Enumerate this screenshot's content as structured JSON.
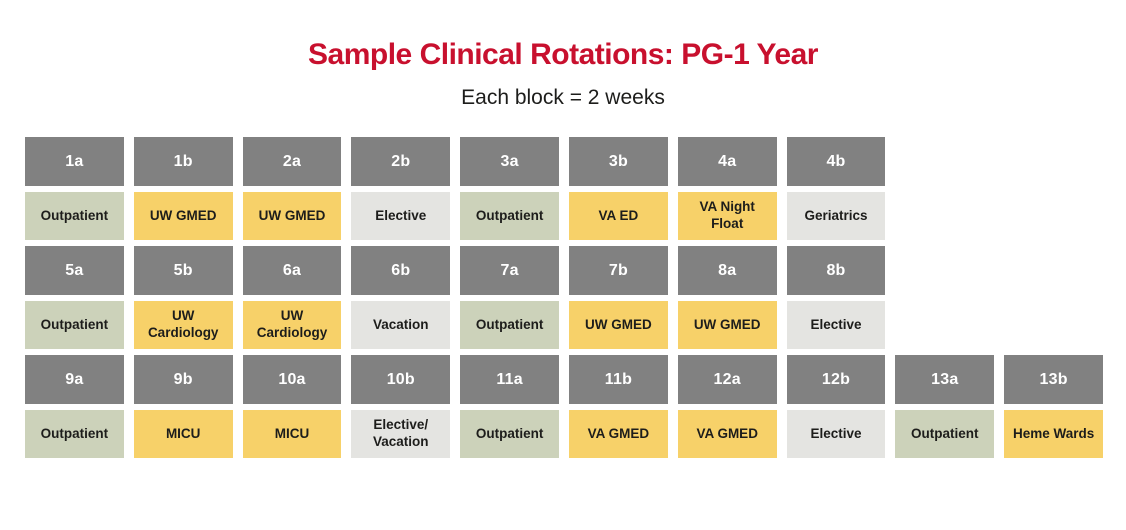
{
  "title": "Sample Clinical Rotations: PG-1 Year",
  "subtitle": "Each block = 2 weeks",
  "colors": {
    "title": "#c8102e",
    "header_bg": "#818181",
    "header_text": "#ffffff",
    "outpatient_bg": "#ccd2ba",
    "inpatient_bg": "#f7d169",
    "elective_bg": "#e4e4e1",
    "cell_text": "#1d1d1b"
  },
  "chart_data": {
    "type": "table",
    "title": "Sample Clinical Rotations: PG-1 Year",
    "subtitle": "Each block = 2 weeks",
    "columns": 10,
    "rows": [
      {
        "blocks": [
          {
            "id": "1a",
            "rotation": "Outpatient",
            "type": "outpatient"
          },
          {
            "id": "1b",
            "rotation": "UW GMED",
            "type": "inpatient"
          },
          {
            "id": "2a",
            "rotation": "UW GMED",
            "type": "inpatient"
          },
          {
            "id": "2b",
            "rotation": "Elective",
            "type": "elective"
          },
          {
            "id": "3a",
            "rotation": "Outpatient",
            "type": "outpatient"
          },
          {
            "id": "3b",
            "rotation": "VA ED",
            "type": "inpatient"
          },
          {
            "id": "4a",
            "rotation": "VA Night Float",
            "type": "inpatient"
          },
          {
            "id": "4b",
            "rotation": "Geriatrics",
            "type": "elective"
          }
        ]
      },
      {
        "blocks": [
          {
            "id": "5a",
            "rotation": "Outpatient",
            "type": "outpatient"
          },
          {
            "id": "5b",
            "rotation": "UW Cardiology",
            "type": "inpatient"
          },
          {
            "id": "6a",
            "rotation": "UW Cardiology",
            "type": "inpatient"
          },
          {
            "id": "6b",
            "rotation": "Vacation",
            "type": "elective"
          },
          {
            "id": "7a",
            "rotation": "Outpatient",
            "type": "outpatient"
          },
          {
            "id": "7b",
            "rotation": "UW GMED",
            "type": "inpatient"
          },
          {
            "id": "8a",
            "rotation": "UW GMED",
            "type": "inpatient"
          },
          {
            "id": "8b",
            "rotation": "Elective",
            "type": "elective"
          }
        ]
      },
      {
        "blocks": [
          {
            "id": "9a",
            "rotation": "Outpatient",
            "type": "outpatient"
          },
          {
            "id": "9b",
            "rotation": "MICU",
            "type": "inpatient"
          },
          {
            "id": "10a",
            "rotation": "MICU",
            "type": "inpatient"
          },
          {
            "id": "10b",
            "rotation": "Elective/Vacation",
            "type": "elective"
          },
          {
            "id": "11a",
            "rotation": "Outpatient",
            "type": "outpatient"
          },
          {
            "id": "11b",
            "rotation": "VA GMED",
            "type": "inpatient"
          },
          {
            "id": "12a",
            "rotation": "VA GMED",
            "type": "inpatient"
          },
          {
            "id": "12b",
            "rotation": "Elective",
            "type": "elective"
          },
          {
            "id": "13a",
            "rotation": "Outpatient",
            "type": "outpatient"
          },
          {
            "id": "13b",
            "rotation": "Heme Wards",
            "type": "inpatient"
          }
        ]
      }
    ]
  }
}
